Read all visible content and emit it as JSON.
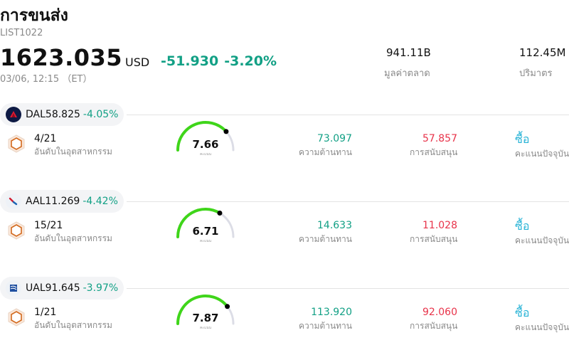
{
  "header": {
    "title": "การขนส่ง",
    "code": "LIST1022",
    "price": "1623.035",
    "currency": "USD",
    "change": "-51.930",
    "change_pct": "-3.20%",
    "time": "03/06, 12:15 （ET）",
    "market_cap_value": "941.11B",
    "market_cap_label": "มูลค่าตลาด",
    "volume_value": "112.45M",
    "volume_label": "ปริมาตร"
  },
  "labels": {
    "rank_label": "อันดับในอุตสาหกรรม",
    "resistance_label": "ความต้านทาน",
    "support_label": "การสนับสนุน",
    "consensus_label": "คะแนนปัจจุบัน",
    "gauge_sub": "คะแนน"
  },
  "stocks": [
    {
      "ticker": "DAL",
      "price": "58.825",
      "change_pct": "-4.05%",
      "rank": "4/21",
      "score": 7.66,
      "score_text": "7.66",
      "resistance": "73.097",
      "support": "57.857",
      "action": "ซื้อ",
      "logo_color": "#0e1a44"
    },
    {
      "ticker": "AAL",
      "price": "11.269",
      "change_pct": "-4.42%",
      "rank": "15/21",
      "score": 6.71,
      "score_text": "6.71",
      "resistance": "14.633",
      "support": "11.028",
      "action": "ซื้อ",
      "logo_color": "#eef2f7"
    },
    {
      "ticker": "UAL",
      "price": "91.645",
      "change_pct": "-3.97%",
      "rank": "1/21",
      "score": 7.87,
      "score_text": "7.87",
      "resistance": "113.920",
      "support": "92.060",
      "action": "ซื้อ",
      "logo_color": "#eef2f7"
    }
  ],
  "colors": {
    "gain_green": "#12a085",
    "support_red": "#e8334a",
    "buy_blue": "#27b3d6",
    "gauge_green": "#3fd51a",
    "gauge_track": "#dcdde6"
  }
}
